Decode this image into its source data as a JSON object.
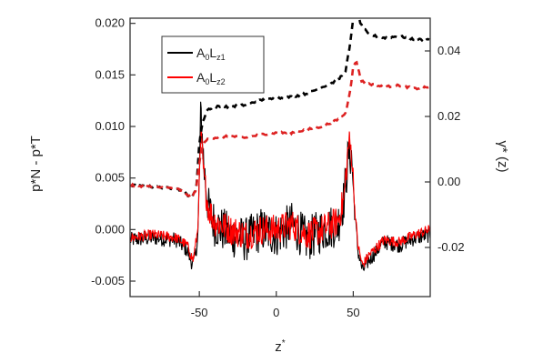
{
  "chart_data": {
    "type": "line",
    "title": "",
    "xlabel": "z*",
    "ylabel_left": "p*N - p*T",
    "ylabel_right": "γ* (z)",
    "xlim": [
      -95,
      100
    ],
    "ylim_left": [
      -0.0065,
      0.0205
    ],
    "ylim_right": [
      -0.035,
      0.05
    ],
    "x_ticks": [
      -50,
      0,
      50
    ],
    "x_tick_labels": [
      "-50",
      "0",
      "50"
    ],
    "y_left_ticks": [
      -0.005,
      0.0,
      0.005,
      0.01,
      0.015,
      0.02
    ],
    "y_left_tick_labels": [
      "-0.005",
      "0.000",
      "0.005",
      "0.010",
      "0.015",
      "0.020"
    ],
    "y_right_ticks": [
      -0.02,
      0.0,
      0.02,
      0.04
    ],
    "y_right_tick_labels": [
      "-0.02",
      "0.00",
      "0.02",
      "0.04"
    ],
    "legend": {
      "placement": "top-left",
      "entries": [
        {
          "label": "A",
          "sub1": "0",
          "mid": "L",
          "sub2": "z1",
          "color": "#000000"
        },
        {
          "label": "A",
          "sub1": "0",
          "mid": "L",
          "sub2": "z2",
          "color": "#ff0000"
        }
      ]
    },
    "series": [
      {
        "axis": "left",
        "style": "solid",
        "color": "#000000",
        "x": [
          -95,
          -80,
          -65,
          -58,
          -54,
          -51,
          -49,
          -47,
          -44,
          -40,
          -30,
          -20,
          -10,
          0,
          10,
          20,
          30,
          40,
          44,
          47,
          49,
          51,
          53,
          56,
          60,
          70,
          80,
          90,
          100
        ],
        "y": [
          -0.001,
          -0.0008,
          -0.001,
          -0.002,
          -0.0035,
          -0.001,
          0.0115,
          0.006,
          0.002,
          0.0005,
          -0.0005,
          -0.001,
          0.0,
          -0.0005,
          0.0005,
          -0.001,
          0.0,
          0.0005,
          0.003,
          0.0075,
          0.007,
          0.0015,
          -0.002,
          -0.004,
          -0.003,
          -0.0012,
          -0.0015,
          -0.0008,
          -0.0005
        ],
        "noise": 0.0022
      },
      {
        "axis": "left",
        "style": "solid",
        "color": "#ff0000",
        "x": [
          -95,
          -80,
          -65,
          -58,
          -54,
          -51,
          -49,
          -47,
          -44,
          -40,
          -30,
          -20,
          -10,
          0,
          10,
          20,
          30,
          40,
          44,
          47,
          49,
          51,
          53,
          56,
          60,
          70,
          80,
          90,
          100
        ],
        "y": [
          -0.0008,
          -0.0005,
          -0.0008,
          -0.0015,
          -0.003,
          0.0,
          0.009,
          0.005,
          0.002,
          0.0008,
          0.0,
          -0.0005,
          0.0,
          0.0,
          0.0005,
          -0.0005,
          0.0,
          0.0008,
          0.003,
          0.0085,
          0.0075,
          0.002,
          -0.0015,
          -0.0035,
          -0.0025,
          -0.001,
          -0.0012,
          -0.0005,
          0.0
        ],
        "noise": 0.0015
      },
      {
        "axis": "right",
        "style": "dashed",
        "color": "#000000",
        "x": [
          -95,
          -80,
          -65,
          -60,
          -55,
          -52,
          -50,
          -48,
          -45,
          -40,
          -30,
          -20,
          -10,
          0,
          10,
          20,
          30,
          40,
          45,
          48,
          50,
          52,
          55,
          60,
          70,
          80,
          90,
          100
        ],
        "y": [
          -0.001,
          -0.0015,
          -0.002,
          -0.003,
          -0.005,
          -0.002,
          0.012,
          0.018,
          0.022,
          0.023,
          0.023,
          0.0235,
          0.025,
          0.0255,
          0.026,
          0.027,
          0.029,
          0.031,
          0.034,
          0.042,
          0.05,
          0.053,
          0.048,
          0.045,
          0.044,
          0.0445,
          0.0435,
          0.0435
        ]
      },
      {
        "axis": "right",
        "style": "dashed",
        "color": "#dd2222",
        "x": [
          -95,
          -80,
          -65,
          -60,
          -55,
          -52,
          -50,
          -48,
          -45,
          -40,
          -30,
          -20,
          -10,
          0,
          10,
          20,
          30,
          40,
          45,
          48,
          50,
          52,
          55,
          60,
          70,
          80,
          90,
          100
        ],
        "y": [
          -0.001,
          -0.0015,
          -0.002,
          -0.003,
          -0.005,
          -0.002,
          0.006,
          0.011,
          0.013,
          0.0135,
          0.014,
          0.0135,
          0.0145,
          0.015,
          0.015,
          0.016,
          0.017,
          0.019,
          0.021,
          0.028,
          0.035,
          0.037,
          0.031,
          0.03,
          0.029,
          0.0295,
          0.0285,
          0.029
        ]
      }
    ]
  }
}
